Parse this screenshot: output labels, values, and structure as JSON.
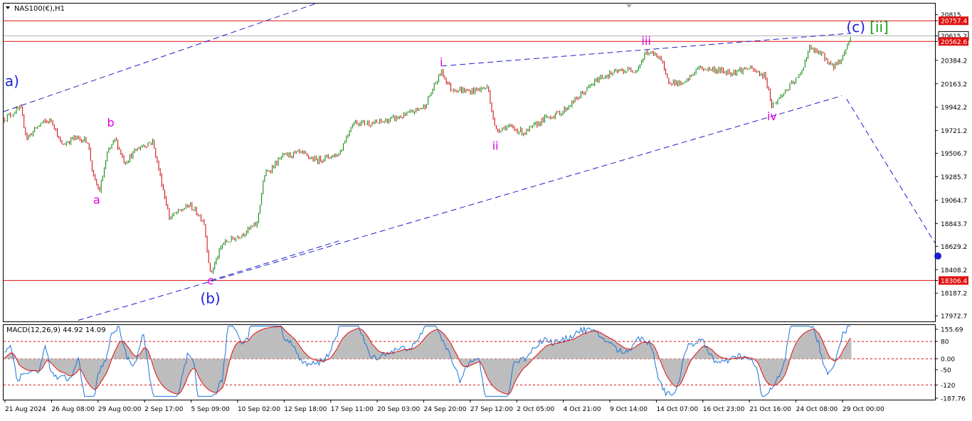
{
  "chart_title": "NAS100(€),H1",
  "indicator_title": "MACD(12,26,9) 44.92 14.09",
  "colors": {
    "up": "#008000",
    "down": "#cc0000",
    "channel": "#1f1fc9",
    "hline": "#e01010",
    "price_tag": "#e01010",
    "macd_hist": "#bdbdbd",
    "macd_line": "#1e74d6",
    "signal_line": "#e01010",
    "wave_minor": "#e000e0",
    "wave_major": "#1f1fe0",
    "wave_green": "#1f9a1f"
  },
  "chart_data": {
    "type": "candlestick",
    "instrument": "NAS100(€)",
    "timeframe": "H1",
    "ylim": [
      17920,
      20920
    ],
    "y_ticks": [
      "20815",
      "20757.4",
      "20615.2",
      "20562.6",
      "20384.2",
      "20163.2",
      "19942.2",
      "19721.2",
      "19506.7",
      "19285.7",
      "19064.7",
      "18843.7",
      "18629.2",
      "18408.2",
      "18306.4",
      "18187.2",
      "17972.7"
    ],
    "x_ticks": [
      "21 Aug 2024",
      "26 Aug 08:00",
      "29 Aug 00:00",
      "2 Sep 17:00",
      "5 Sep 09:00",
      "10 Sep 02:00",
      "12 Sep 18:00",
      "17 Sep 11:00",
      "20 Sep 03:00",
      "24 Sep 20:00",
      "27 Sep 12:00",
      "2 Oct 05:00",
      "4 Oct 21:00",
      "9 Oct 14:00",
      "14 Oct 07:00",
      "16 Oct 23:00",
      "21 Oct 16:00",
      "24 Oct 08:00",
      "29 Oct 00:00"
    ],
    "price_path": [
      {
        "t": 0.0,
        "p": 19830
      },
      {
        "t": 0.018,
        "p": 19935
      },
      {
        "t": 0.025,
        "p": 19650
      },
      {
        "t": 0.04,
        "p": 19790
      },
      {
        "t": 0.052,
        "p": 19820
      },
      {
        "t": 0.062,
        "p": 19580
      },
      {
        "t": 0.075,
        "p": 19650
      },
      {
        "t": 0.09,
        "p": 19630
      },
      {
        "t": 0.097,
        "p": 19260
      },
      {
        "t": 0.103,
        "p": 19150
      },
      {
        "t": 0.112,
        "p": 19520
      },
      {
        "t": 0.12,
        "p": 19640
      },
      {
        "t": 0.13,
        "p": 19420
      },
      {
        "t": 0.145,
        "p": 19560
      },
      {
        "t": 0.16,
        "p": 19620
      },
      {
        "t": 0.168,
        "p": 19300
      },
      {
        "t": 0.178,
        "p": 18900
      },
      {
        "t": 0.2,
        "p": 19020
      },
      {
        "t": 0.215,
        "p": 18870
      },
      {
        "t": 0.222,
        "p": 18360
      },
      {
        "t": 0.235,
        "p": 18650
      },
      {
        "t": 0.255,
        "p": 18740
      },
      {
        "t": 0.272,
        "p": 18840
      },
      {
        "t": 0.28,
        "p": 19300
      },
      {
        "t": 0.3,
        "p": 19480
      },
      {
        "t": 0.318,
        "p": 19510
      },
      {
        "t": 0.335,
        "p": 19440
      },
      {
        "t": 0.36,
        "p": 19500
      },
      {
        "t": 0.375,
        "p": 19800
      },
      {
        "t": 0.4,
        "p": 19790
      },
      {
        "t": 0.43,
        "p": 19860
      },
      {
        "t": 0.452,
        "p": 19950
      },
      {
        "t": 0.47,
        "p": 20280
      },
      {
        "t": 0.48,
        "p": 20120
      },
      {
        "t": 0.5,
        "p": 20090
      },
      {
        "t": 0.52,
        "p": 20130
      },
      {
        "t": 0.528,
        "p": 19720
      },
      {
        "t": 0.54,
        "p": 19760
      },
      {
        "t": 0.56,
        "p": 19700
      },
      {
        "t": 0.58,
        "p": 19830
      },
      {
        "t": 0.6,
        "p": 19900
      },
      {
        "t": 0.62,
        "p": 20060
      },
      {
        "t": 0.64,
        "p": 20220
      },
      {
        "t": 0.66,
        "p": 20280
      },
      {
        "t": 0.68,
        "p": 20300
      },
      {
        "t": 0.69,
        "p": 20460
      },
      {
        "t": 0.705,
        "p": 20420
      },
      {
        "t": 0.712,
        "p": 20200
      },
      {
        "t": 0.73,
        "p": 20150
      },
      {
        "t": 0.745,
        "p": 20310
      },
      {
        "t": 0.76,
        "p": 20300
      },
      {
        "t": 0.78,
        "p": 20270
      },
      {
        "t": 0.8,
        "p": 20310
      },
      {
        "t": 0.818,
        "p": 20230
      },
      {
        "t": 0.825,
        "p": 19950
      },
      {
        "t": 0.84,
        "p": 20100
      },
      {
        "t": 0.855,
        "p": 20240
      },
      {
        "t": 0.865,
        "p": 20500
      },
      {
        "t": 0.88,
        "p": 20430
      },
      {
        "t": 0.89,
        "p": 20320
      },
      {
        "t": 0.9,
        "p": 20400
      },
      {
        "t": 0.91,
        "p": 20620
      }
    ],
    "horizontal_levels": [
      20757.4,
      20562.6,
      18306.4
    ],
    "current_price_tag": "20615.2",
    "macd": {
      "name": "MACD(12,26,9)",
      "main": 44.92,
      "signal": 14.09,
      "ylim": [
        -187.76,
        155.69
      ],
      "y_ticks": [
        "155.69",
        "80",
        "0.00",
        "-50",
        "-120",
        "-187.76"
      ],
      "levels": [
        80,
        0,
        -120
      ]
    },
    "wave_labels": [
      {
        "text": "(a)",
        "t": 0.0,
        "p": 20140,
        "cls": "major"
      },
      {
        "text": "a",
        "t": 0.1,
        "p": 19030,
        "cls": "minor"
      },
      {
        "text": "b",
        "t": 0.115,
        "p": 19760,
        "cls": "minor"
      },
      {
        "text": "c",
        "t": 0.222,
        "p": 18270,
        "cls": "minor"
      },
      {
        "text": "(b)",
        "t": 0.222,
        "p": 18090,
        "cls": "major"
      },
      {
        "text": "i",
        "t": 0.47,
        "p": 20330,
        "cls": "minor"
      },
      {
        "text": "ii",
        "t": 0.528,
        "p": 19540,
        "cls": "minor"
      },
      {
        "text": "iii",
        "t": 0.69,
        "p": 20530,
        "cls": "minor"
      },
      {
        "text": "iv",
        "t": 0.825,
        "p": 19820,
        "cls": "minor"
      },
      {
        "text": "(c)",
        "t": 0.915,
        "p": 20650,
        "cls": "major"
      },
      {
        "text": "[ii]",
        "t": 0.94,
        "p": 20650,
        "cls": "green"
      }
    ]
  }
}
